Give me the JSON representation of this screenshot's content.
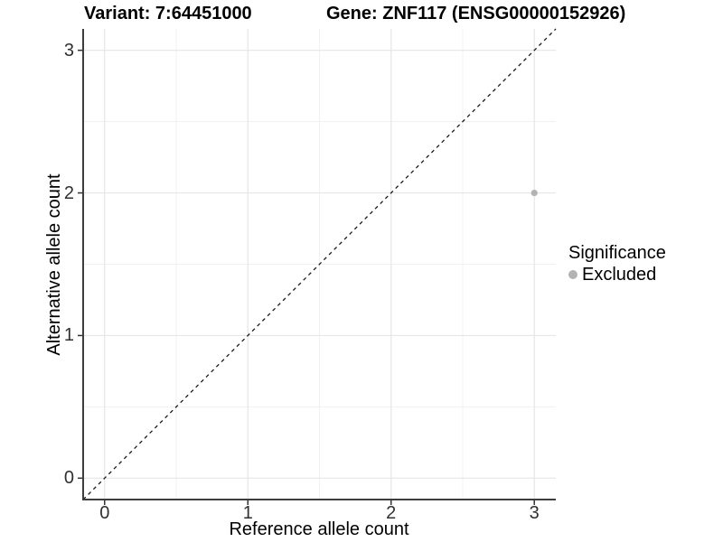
{
  "titles": {
    "variant": "Variant: 7:64451000",
    "gene": "Gene: ZNF117 (ENSG00000152926)"
  },
  "axes": {
    "x_label": "Reference allele count",
    "y_label": "Alternative allele count"
  },
  "legend": {
    "title": "Significance",
    "items": [
      {
        "label": "Excluded",
        "color": "#b3b3b3"
      }
    ]
  },
  "colors": {
    "background": "#ffffff",
    "point": "#b3b3b3",
    "grid_major": "#e6e6e6",
    "grid_minor": "#f1f1f1",
    "axis_line": "#3d3d3d",
    "tick_mark": "#333333",
    "tick_text": "#303030",
    "dashed_line": "#1a1a1a"
  },
  "chart_data": {
    "type": "scatter",
    "title": "Variant: 7:64451000   |   Gene: ZNF117 (ENSG00000152926)",
    "xlabel": "Reference allele count",
    "ylabel": "Alternative allele count",
    "xlim": [
      -0.15,
      3.15
    ],
    "ylim": [
      -0.15,
      3.15
    ],
    "x_ticks": [
      0,
      1,
      2,
      3
    ],
    "y_ticks": [
      0,
      1,
      2,
      3
    ],
    "x_minor_ticks": [
      0.5,
      1.5,
      2.5
    ],
    "y_minor_ticks": [
      0.5,
      1.5,
      2.5
    ],
    "grid": "major-and-minor",
    "legend_position": "right",
    "series": [
      {
        "name": "Excluded",
        "color": "#b3b3b3",
        "points": [
          {
            "x": 3,
            "y": 2
          }
        ]
      }
    ],
    "reference_line": {
      "type": "identity",
      "slope": 1,
      "intercept": 0,
      "style": "dashed"
    }
  }
}
